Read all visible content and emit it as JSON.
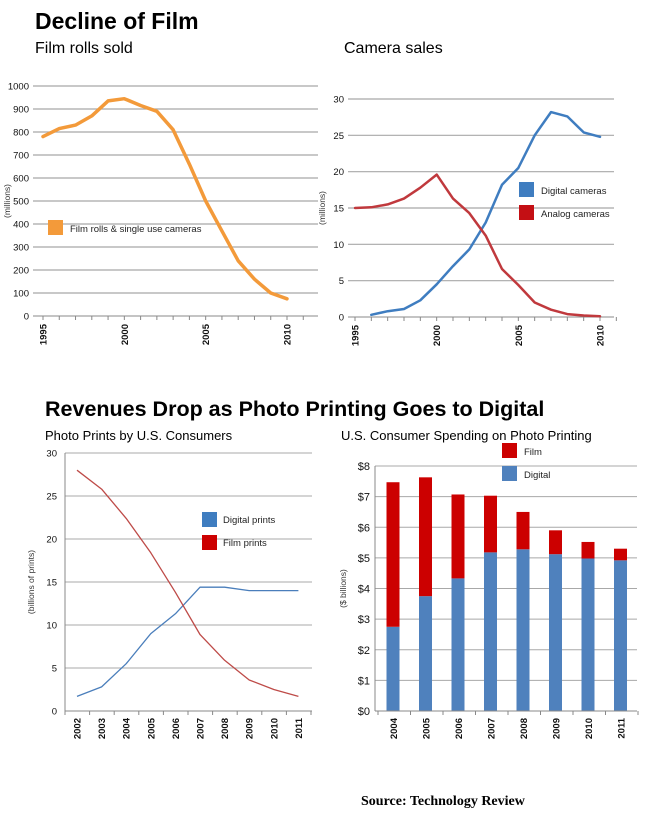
{
  "page": {
    "title_top": "Decline of Film",
    "title_bottom": "Revenues Drop as Photo Printing Goes to Digital",
    "source": "Source:  Technology Review"
  },
  "chart_data": [
    {
      "id": "film-rolls",
      "type": "line",
      "title": "Film rolls sold",
      "xlabel": "",
      "ylabel": "(millions)",
      "ylim": [
        0,
        1000
      ],
      "xlim": [
        1995,
        2011.5
      ],
      "yticks": [
        0,
        100,
        200,
        300,
        400,
        500,
        600,
        700,
        800,
        900,
        1000
      ],
      "xtick_labels": [
        "1995",
        "2000",
        "2005",
        "2010"
      ],
      "grid": true,
      "legend": "left-middle",
      "series": [
        {
          "name": "Film rolls & single use cameras",
          "color": "#F39A3A",
          "x": [
            1995,
            1996,
            1997,
            1998,
            1999,
            2000,
            2001,
            2002,
            2003,
            2004,
            2005,
            2006,
            2007,
            2008,
            2009,
            2010
          ],
          "values": [
            780,
            815,
            830,
            870,
            935,
            945,
            915,
            890,
            810,
            660,
            500,
            370,
            240,
            160,
            100,
            75
          ]
        }
      ]
    },
    {
      "id": "camera-sales",
      "type": "line",
      "title": "Camera sales",
      "xlabel": "",
      "ylabel": "(millions)",
      "ylim": [
        0,
        30
      ],
      "xlim": [
        1995,
        2011.5
      ],
      "yticks": [
        0,
        5,
        10,
        15,
        20,
        25,
        30
      ],
      "xtick_labels": [
        "1995",
        "2000",
        "2005",
        "2010"
      ],
      "grid": true,
      "legend": "right-middle",
      "series": [
        {
          "name": "Digital cameras",
          "color": "#3F7DC0",
          "x": [
            1996,
            1997,
            1998,
            1999,
            2000,
            2001,
            2002,
            2003,
            2004,
            2005,
            2006,
            2007,
            2008,
            2009,
            2010
          ],
          "values": [
            0.3,
            0.8,
            1.1,
            2.3,
            4.5,
            7.0,
            9.3,
            13.0,
            18.2,
            20.5,
            25.0,
            28.2,
            27.6,
            25.4,
            24.8
          ]
        },
        {
          "name": "Analog cameras",
          "color": "#C0393D",
          "x": [
            1995,
            1996,
            1997,
            1998,
            1999,
            2000,
            2001,
            2002,
            2003,
            2004,
            2005,
            2006,
            2007,
            2008,
            2009,
            2010
          ],
          "values": [
            15.0,
            15.1,
            15.5,
            16.3,
            17.8,
            19.6,
            16.3,
            14.3,
            11.2,
            6.6,
            4.4,
            2.0,
            1.0,
            0.4,
            0.2,
            0.1
          ]
        }
      ]
    },
    {
      "id": "photo-prints",
      "type": "line",
      "title": "Photo Prints by U.S. Consumers",
      "xlabel": "",
      "ylabel": "(billions of prints)",
      "ylim": [
        0,
        30
      ],
      "yticks": [
        0,
        5,
        10,
        15,
        20,
        25,
        30
      ],
      "categories": [
        "2002",
        "2003",
        "2004",
        "2005",
        "2006",
        "2007",
        "2008",
        "2009",
        "2010",
        "2011"
      ],
      "grid": true,
      "legend": "right-middle",
      "series": [
        {
          "name": "Digital prints",
          "color": "#4A7EBB",
          "values": [
            1.7,
            2.8,
            5.5,
            9.0,
            11.3,
            14.4,
            14.4,
            14.0,
            14.0,
            14.0
          ]
        },
        {
          "name": "Film prints",
          "color": "#BE4B48",
          "values": [
            28.0,
            25.8,
            22.4,
            18.4,
            13.8,
            8.9,
            5.9,
            3.6,
            2.5,
            1.7
          ]
        }
      ],
      "legend_colors": {
        "Digital prints": "#3F7DC0",
        "Film prints": "#CC0000"
      }
    },
    {
      "id": "photo-spending",
      "type": "bar",
      "stacked": true,
      "title": "U.S. Consumer Spending on Photo Printing",
      "xlabel": "",
      "ylabel": "($ billions)",
      "ylim": [
        0,
        8
      ],
      "yticks": [
        0,
        1,
        2,
        3,
        4,
        5,
        6,
        7,
        8
      ],
      "ytick_labels": [
        "$0",
        "$1",
        "$2",
        "$3",
        "$4",
        "$5",
        "$6",
        "$7",
        "$8"
      ],
      "categories": [
        "2004",
        "2005",
        "2006",
        "2007",
        "2008",
        "2009",
        "2010",
        "2011"
      ],
      "grid": true,
      "legend": "top-center",
      "series": [
        {
          "name": "Digital",
          "color": "#4F81BD",
          "values": [
            2.75,
            3.75,
            4.33,
            5.18,
            5.28,
            5.12,
            4.98,
            4.92
          ]
        },
        {
          "name": "Film",
          "color": "#CC0000",
          "values": [
            4.72,
            3.88,
            2.74,
            1.85,
            1.22,
            0.78,
            0.54,
            0.38
          ]
        }
      ],
      "legend_order": [
        "Film",
        "Digital"
      ]
    }
  ]
}
